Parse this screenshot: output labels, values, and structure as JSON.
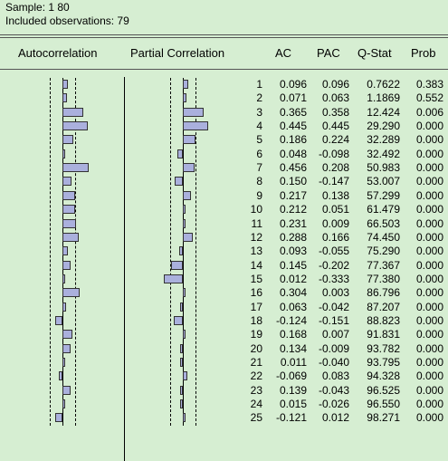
{
  "info": {
    "sample": "Sample: 1 80",
    "observations": "Included observations: 79"
  },
  "headers": {
    "autocorrelation": "Autocorrelation",
    "partial_correlation": "Partial Correlation",
    "ac": "AC",
    "pac": "PAC",
    "qstat": "Q-Stat",
    "prob": "Prob"
  },
  "rows": [
    {
      "lag": "1",
      "ac": "0.096",
      "pac": "0.096",
      "q": "0.7622",
      "prob": "0.383"
    },
    {
      "lag": "2",
      "ac": "0.071",
      "pac": "0.063",
      "q": "1.1869",
      "prob": "0.552"
    },
    {
      "lag": "3",
      "ac": "0.365",
      "pac": "0.358",
      "q": "12.424",
      "prob": "0.006"
    },
    {
      "lag": "4",
      "ac": "0.445",
      "pac": "0.445",
      "q": "29.290",
      "prob": "0.000"
    },
    {
      "lag": "5",
      "ac": "0.186",
      "pac": "0.224",
      "q": "32.289",
      "prob": "0.000"
    },
    {
      "lag": "6",
      "ac": "0.048",
      "pac": "-0.098",
      "q": "32.492",
      "prob": "0.000"
    },
    {
      "lag": "7",
      "ac": "0.456",
      "pac": "0.208",
      "q": "50.983",
      "prob": "0.000"
    },
    {
      "lag": "8",
      "ac": "0.150",
      "pac": "-0.147",
      "q": "53.007",
      "prob": "0.000"
    },
    {
      "lag": "9",
      "ac": "0.217",
      "pac": "0.138",
      "q": "57.299",
      "prob": "0.000"
    },
    {
      "lag": "10",
      "ac": "0.212",
      "pac": "0.051",
      "q": "61.479",
      "prob": "0.000"
    },
    {
      "lag": "11",
      "ac": "0.231",
      "pac": "0.009",
      "q": "66.503",
      "prob": "0.000"
    },
    {
      "lag": "12",
      "ac": "0.288",
      "pac": "0.166",
      "q": "74.450",
      "prob": "0.000"
    },
    {
      "lag": "13",
      "ac": "0.093",
      "pac": "-0.055",
      "q": "75.290",
      "prob": "0.000"
    },
    {
      "lag": "14",
      "ac": "0.145",
      "pac": "-0.202",
      "q": "77.367",
      "prob": "0.000"
    },
    {
      "lag": "15",
      "ac": "0.012",
      "pac": "-0.333",
      "q": "77.380",
      "prob": "0.000"
    },
    {
      "lag": "16",
      "ac": "0.304",
      "pac": "0.003",
      "q": "86.796",
      "prob": "0.000"
    },
    {
      "lag": "17",
      "ac": "0.063",
      "pac": "-0.042",
      "q": "87.207",
      "prob": "0.000"
    },
    {
      "lag": "18",
      "ac": "-0.124",
      "pac": "-0.151",
      "q": "88.823",
      "prob": "0.000"
    },
    {
      "lag": "19",
      "ac": "0.168",
      "pac": "0.007",
      "q": "91.831",
      "prob": "0.000"
    },
    {
      "lag": "20",
      "ac": "0.134",
      "pac": "-0.009",
      "q": "93.782",
      "prob": "0.000"
    },
    {
      "lag": "21",
      "ac": "0.011",
      "pac": "-0.040",
      "q": "93.795",
      "prob": "0.000"
    },
    {
      "lag": "22",
      "ac": "-0.069",
      "pac": "0.083",
      "q": "94.328",
      "prob": "0.000"
    },
    {
      "lag": "23",
      "ac": "0.139",
      "pac": "-0.043",
      "q": "96.525",
      "prob": "0.000"
    },
    {
      "lag": "24",
      "ac": "0.015",
      "pac": "-0.026",
      "q": "96.550",
      "prob": "0.000"
    },
    {
      "lag": "25",
      "ac": "-0.121",
      "pac": "0.012",
      "q": "98.271",
      "prob": "0.000"
    }
  ],
  "colors": {
    "background": "#d6eed2",
    "bar_fill": "#aab0dd",
    "bar_border": "#333333"
  }
}
